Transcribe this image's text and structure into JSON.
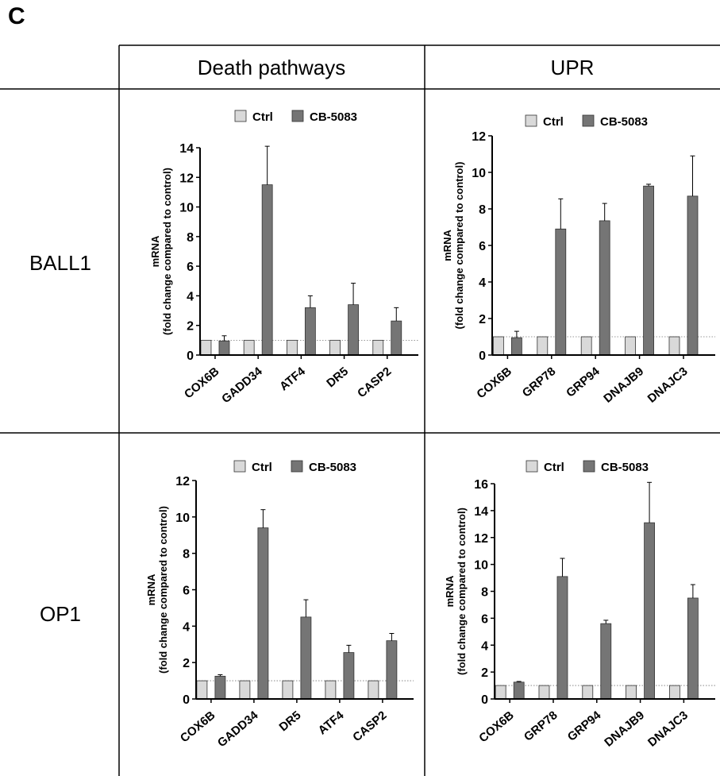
{
  "panel_label": "C",
  "table": {
    "column_headers": [
      "Death pathways",
      "UPR"
    ],
    "row_headers": [
      "BALL1",
      "OP1"
    ]
  },
  "legend": {
    "ctrl": "Ctrl",
    "treated": "CB-5083"
  },
  "y_axis_label_line1": "mRNA",
  "y_axis_label_line2": "(fold change compared to control)",
  "colors": {
    "ctrl": "#d9d9d9",
    "treated": "#757575",
    "reference_line": "#777777"
  },
  "chart_data": [
    {
      "type": "bar",
      "row": "BALL1",
      "column": "Death pathways",
      "categories": [
        "COX6B",
        "GADD34",
        "ATF4",
        "DR5",
        "CASP2"
      ],
      "series": [
        {
          "name": "Ctrl",
          "values": [
            1,
            1,
            1,
            1,
            1
          ],
          "errors": [
            0,
            0,
            0,
            0,
            0
          ]
        },
        {
          "name": "CB-5083",
          "values": [
            0.95,
            11.5,
            3.2,
            3.4,
            2.3
          ],
          "errors": [
            0.35,
            2.6,
            0.8,
            1.45,
            0.9
          ]
        }
      ],
      "ylim": [
        0,
        14
      ],
      "yticks": [
        0,
        2,
        4,
        6,
        8,
        10,
        12,
        14
      ],
      "reference_line": 1,
      "legend_position": "top"
    },
    {
      "type": "bar",
      "row": "BALL1",
      "column": "UPR",
      "categories": [
        "COX6B",
        "GRP78",
        "GRP94",
        "DNAJB9",
        "DNAJC3"
      ],
      "series": [
        {
          "name": "Ctrl",
          "values": [
            1,
            1,
            1,
            1,
            1
          ],
          "errors": [
            0,
            0,
            0,
            0,
            0
          ]
        },
        {
          "name": "CB-5083",
          "values": [
            0.95,
            6.9,
            7.35,
            9.25,
            8.7
          ],
          "errors": [
            0.35,
            1.65,
            0.95,
            0.1,
            2.2
          ]
        }
      ],
      "ylim": [
        0,
        12
      ],
      "yticks": [
        0,
        2,
        4,
        6,
        8,
        10,
        12
      ],
      "reference_line": 1,
      "legend_position": "top"
    },
    {
      "type": "bar",
      "row": "OP1",
      "column": "Death pathways",
      "categories": [
        "COX6B",
        "GADD34",
        "DR5",
        "ATF4",
        "CASP2"
      ],
      "series": [
        {
          "name": "Ctrl",
          "values": [
            1,
            1,
            1,
            1,
            1
          ],
          "errors": [
            0,
            0,
            0,
            0,
            0
          ]
        },
        {
          "name": "CB-5083",
          "values": [
            1.25,
            9.4,
            4.5,
            2.55,
            3.2
          ],
          "errors": [
            0.08,
            1.0,
            0.95,
            0.4,
            0.4
          ]
        }
      ],
      "ylim": [
        0,
        12
      ],
      "yticks": [
        0,
        2,
        4,
        6,
        8,
        10,
        12
      ],
      "reference_line": 1,
      "legend_position": "top"
    },
    {
      "type": "bar",
      "row": "OP1",
      "column": "UPR",
      "categories": [
        "COX6B",
        "GRP78",
        "GRP94",
        "DNAJB9",
        "DNAJC3"
      ],
      "series": [
        {
          "name": "Ctrl",
          "values": [
            1,
            1,
            1,
            1,
            1
          ],
          "errors": [
            0,
            0,
            0,
            0,
            0
          ]
        },
        {
          "name": "CB-5083",
          "values": [
            1.25,
            9.1,
            5.6,
            13.1,
            7.5
          ],
          "errors": [
            0.05,
            1.35,
            0.25,
            3.0,
            1.0
          ]
        }
      ],
      "ylim": [
        0,
        16
      ],
      "yticks": [
        0,
        2,
        4,
        6,
        8,
        10,
        12,
        14,
        16
      ],
      "reference_line": 1,
      "legend_position": "top"
    }
  ]
}
